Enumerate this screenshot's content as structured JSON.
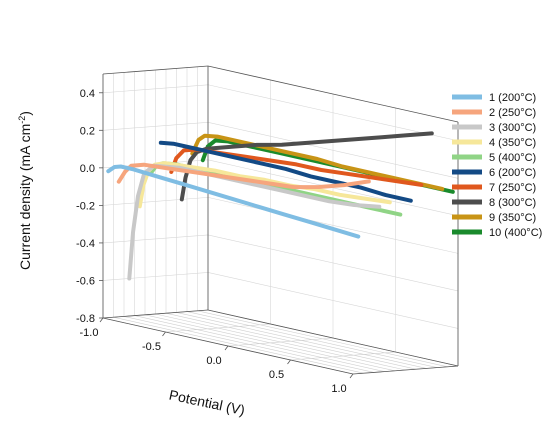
{
  "chart_data": {
    "type": "line",
    "subtype": "3d-waterfall",
    "title": "",
    "xlabel": "Potential (V)",
    "ylabel_main": "Current density (mA cm",
    "ylabel_sup": "-2",
    "ylabel_end": ")",
    "xlim": [
      -1.0,
      1.0
    ],
    "ylim": [
      -0.8,
      0.5
    ],
    "x_ticks": [
      "-1.0",
      "-0.5",
      "0.0",
      "0.5",
      "1.0"
    ],
    "x_tick_values": [
      -1.0,
      -0.5,
      0.0,
      0.5,
      1.0
    ],
    "y_ticks": [
      "0.4",
      "0.2",
      "0.0",
      "-0.2",
      "-0.4",
      "-0.6",
      "-0.8"
    ],
    "y_tick_values": [
      0.4,
      0.2,
      0.0,
      -0.2,
      -0.4,
      -0.6,
      -0.8
    ],
    "grid": true,
    "legend_position": "right",
    "series": [
      {
        "name": "1 (200°C)",
        "color": "#7fbde3",
        "points": [
          [
            -1.0,
            -0.02
          ],
          [
            -0.95,
            0.01
          ],
          [
            -0.9,
            0.02
          ],
          [
            -0.8,
            0.02
          ],
          [
            -0.6,
            0.01
          ],
          [
            -0.4,
            0.0
          ],
          [
            -0.2,
            -0.01
          ],
          [
            0.0,
            -0.02
          ],
          [
            0.2,
            -0.03
          ],
          [
            0.4,
            -0.04
          ],
          [
            0.6,
            -0.05
          ],
          [
            0.8,
            -0.06
          ],
          [
            1.0,
            -0.07
          ]
        ]
      },
      {
        "name": "2 (250°C)",
        "color": "#f6a57d",
        "points": [
          [
            -1.0,
            -0.08
          ],
          [
            -0.95,
            -0.02
          ],
          [
            -0.9,
            0.02
          ],
          [
            -0.8,
            0.04
          ],
          [
            -0.6,
            0.05
          ],
          [
            -0.4,
            0.06
          ],
          [
            -0.2,
            0.07
          ],
          [
            0.0,
            0.08
          ],
          [
            0.2,
            0.09
          ],
          [
            0.4,
            0.1
          ],
          [
            0.6,
            0.13
          ],
          [
            0.8,
            0.17
          ],
          [
            1.0,
            0.22
          ]
        ]
      },
      {
        "name": "3 (300°C)",
        "color": "#c8c8c8",
        "points": [
          [
            -1.0,
            -0.6
          ],
          [
            -0.97,
            -0.35
          ],
          [
            -0.93,
            -0.15
          ],
          [
            -0.88,
            -0.02
          ],
          [
            -0.8,
            0.03
          ],
          [
            -0.6,
            0.05
          ],
          [
            -0.4,
            0.05
          ],
          [
            -0.2,
            0.05
          ],
          [
            0.0,
            0.05
          ],
          [
            0.2,
            0.05
          ],
          [
            0.4,
            0.05
          ],
          [
            0.6,
            0.05
          ],
          [
            0.8,
            0.06
          ],
          [
            1.0,
            0.08
          ]
        ]
      },
      {
        "name": "4 (350°C)",
        "color": "#f6e79a",
        "points": [
          [
            -1.0,
            -0.22
          ],
          [
            -0.97,
            -0.1
          ],
          [
            -0.93,
            -0.02
          ],
          [
            -0.88,
            0.02
          ],
          [
            -0.8,
            0.04
          ],
          [
            -0.6,
            0.05
          ],
          [
            -0.4,
            0.06
          ],
          [
            -0.2,
            0.06
          ],
          [
            0.0,
            0.07
          ],
          [
            0.2,
            0.07
          ],
          [
            0.4,
            0.08
          ],
          [
            0.6,
            0.08
          ],
          [
            0.8,
            0.09
          ],
          [
            1.0,
            0.1
          ]
        ]
      },
      {
        "name": "5 (400°C)",
        "color": "#90d486",
        "points": [
          [
            -1.0,
            -0.05
          ],
          [
            -0.95,
            0.0
          ],
          [
            -0.9,
            0.02
          ],
          [
            -0.8,
            0.03
          ],
          [
            -0.6,
            0.03
          ],
          [
            -0.4,
            0.03
          ],
          [
            -0.2,
            0.03
          ],
          [
            0.0,
            0.03
          ],
          [
            0.2,
            0.03
          ],
          [
            0.4,
            0.03
          ],
          [
            0.6,
            0.03
          ],
          [
            0.8,
            0.03
          ],
          [
            1.0,
            0.03
          ]
        ]
      },
      {
        "name": "6 (200°C)",
        "color": "#134a85",
        "points": [
          [
            -1.0,
            0.11
          ],
          [
            -0.9,
            0.12
          ],
          [
            -0.8,
            0.12
          ],
          [
            -0.6,
            0.12
          ],
          [
            -0.4,
            0.12
          ],
          [
            -0.2,
            0.12
          ],
          [
            0.0,
            0.12
          ],
          [
            0.2,
            0.11
          ],
          [
            0.4,
            0.11
          ],
          [
            0.6,
            0.11
          ],
          [
            0.8,
            0.1
          ],
          [
            1.0,
            0.1
          ]
        ]
      },
      {
        "name": "7 (250°C)",
        "color": "#e0581e",
        "points": [
          [
            -1.0,
            -0.05
          ],
          [
            -0.96,
            0.03
          ],
          [
            -0.9,
            0.08
          ],
          [
            -0.8,
            0.1
          ],
          [
            -0.6,
            0.11
          ],
          [
            -0.4,
            0.12
          ],
          [
            -0.2,
            0.13
          ],
          [
            0.0,
            0.14
          ],
          [
            0.2,
            0.14
          ],
          [
            0.4,
            0.15
          ],
          [
            0.6,
            0.16
          ],
          [
            0.8,
            0.17
          ],
          [
            1.0,
            0.18
          ]
        ]
      },
      {
        "name": "8 (300°C)",
        "color": "#4d4d4d",
        "points": [
          [
            -1.0,
            -0.2
          ],
          [
            -0.97,
            -0.08
          ],
          [
            -0.93,
            0.02
          ],
          [
            -0.88,
            0.07
          ],
          [
            -0.8,
            0.1
          ],
          [
            -0.6,
            0.14
          ],
          [
            -0.4,
            0.18
          ],
          [
            -0.2,
            0.21
          ],
          [
            0.0,
            0.25
          ],
          [
            0.2,
            0.29
          ],
          [
            0.4,
            0.33
          ],
          [
            0.6,
            0.37
          ],
          [
            0.8,
            0.41
          ],
          [
            1.0,
            0.45
          ]
        ]
      },
      {
        "name": "9 (350°C)",
        "color": "#c89416",
        "points": [
          [
            -1.0,
            0.04
          ],
          [
            -0.95,
            0.12
          ],
          [
            -0.9,
            0.15
          ],
          [
            -0.8,
            0.16
          ],
          [
            -0.6,
            0.16
          ],
          [
            -0.4,
            0.16
          ],
          [
            -0.2,
            0.16
          ],
          [
            0.0,
            0.16
          ],
          [
            0.2,
            0.15
          ],
          [
            0.4,
            0.15
          ],
          [
            0.6,
            0.15
          ],
          [
            0.8,
            0.15
          ],
          [
            1.0,
            0.15
          ]
        ]
      },
      {
        "name": "10 (400°C)",
        "color": "#1a8a2c",
        "points": [
          [
            -1.0,
            0.0
          ],
          [
            -0.96,
            0.08
          ],
          [
            -0.9,
            0.12
          ],
          [
            -0.8,
            0.13
          ],
          [
            -0.6,
            0.13
          ],
          [
            -0.4,
            0.13
          ],
          [
            -0.2,
            0.13
          ],
          [
            0.0,
            0.13
          ],
          [
            0.2,
            0.13
          ],
          [
            0.4,
            0.13
          ],
          [
            0.6,
            0.13
          ],
          [
            0.8,
            0.13
          ],
          [
            1.0,
            0.13
          ]
        ]
      }
    ]
  }
}
